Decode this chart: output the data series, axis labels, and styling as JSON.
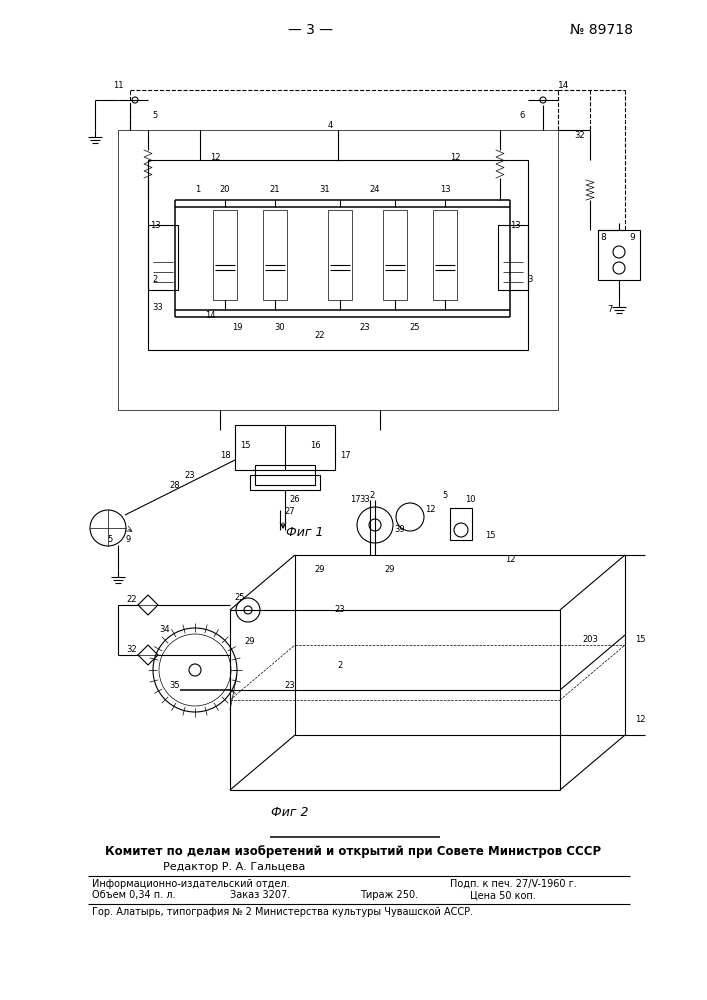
{
  "page_number": "— 3 —",
  "patent_number": "№ 89718",
  "fig1_caption": "Фиг 1",
  "fig2_caption": "Фиг 2",
  "header_text": "Комитет по делам изобретений и открытий при Совете Министров СССР",
  "editor_line": "Редактор Р. А. Гальцева",
  "info_line1_left": "Информационно-издательский отдел.",
  "info_line1_right": "Подп. к печ. 27/V-1960 г.",
  "info_line2_left": "Объем 0,34 п. л.",
  "info_line2_mid": "Заказ 3207.",
  "info_line2_mid2": "Тираж 250.",
  "info_line2_right": "Цена 50 коп.",
  "footer_line": "Гор. Алатырь, типография № 2 Министерства культуры Чувашской АССР.",
  "bg_color": "#ffffff",
  "text_color": "#000000"
}
